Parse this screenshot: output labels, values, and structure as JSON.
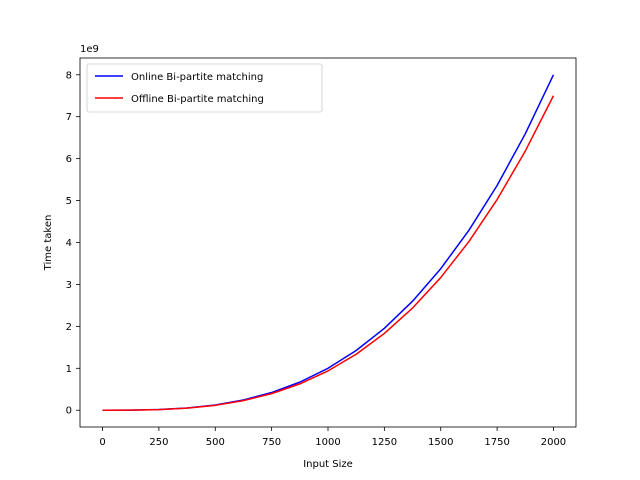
{
  "chart_data": {
    "type": "line",
    "title": "",
    "xlabel": "Input Size",
    "ylabel": "Time taken",
    "y_scale_label": "1e9",
    "xlim": [
      -100,
      2100
    ],
    "ylim": [
      -0.4,
      8.4
    ],
    "xticks": [
      0,
      250,
      500,
      750,
      1000,
      1250,
      1500,
      1750,
      2000
    ],
    "yticks": [
      0,
      1,
      2,
      3,
      4,
      5,
      6,
      7,
      8
    ],
    "grid": false,
    "legend_position": "top-left",
    "x": [
      0,
      125,
      250,
      375,
      500,
      625,
      750,
      875,
      1000,
      1125,
      1250,
      1375,
      1500,
      1625,
      1750,
      1875,
      2000
    ],
    "series": [
      {
        "name": "Online Bi-partite matching",
        "color": "#0000ff",
        "values": [
          0,
          0.002,
          0.016,
          0.053,
          0.125,
          0.244,
          0.422,
          0.67,
          1.0,
          1.424,
          1.953,
          2.6,
          3.375,
          4.291,
          5.359,
          6.592,
          8.0
        ]
      },
      {
        "name": "Offline Bi-partite matching",
        "color": "#ff0000",
        "values": [
          0,
          0.002,
          0.015,
          0.05,
          0.117,
          0.229,
          0.396,
          0.628,
          0.938,
          1.335,
          1.831,
          2.437,
          3.164,
          4.023,
          5.024,
          6.18,
          7.5
        ]
      }
    ]
  }
}
